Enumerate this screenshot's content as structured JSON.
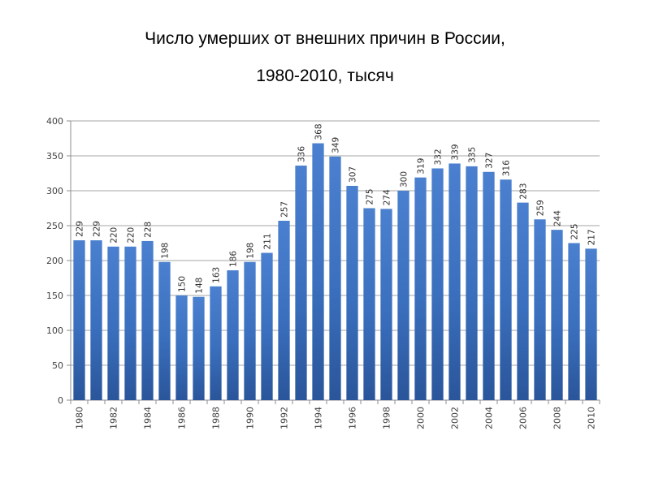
{
  "title_line1": "Число умерших от внешних причин в России,",
  "title_line2": "1980-2010, тысяч",
  "chart_data": {
    "type": "bar",
    "title": "Число умерших от внешних причин в России, 1980-2010, тысяч",
    "categories": [
      "1980",
      "1981",
      "1982",
      "1983",
      "1984",
      "1985",
      "1986",
      "1987",
      "1988",
      "1989",
      "1990",
      "1991",
      "1992",
      "1993",
      "1994",
      "1995",
      "1996",
      "1997",
      "1998",
      "1999",
      "2000",
      "2001",
      "2002",
      "2003",
      "2004",
      "2005",
      "2006",
      "2007",
      "2008",
      "2009",
      "2010"
    ],
    "x_tick_labels": [
      "1980",
      "",
      "1982",
      "",
      "1984",
      "",
      "1986",
      "",
      "1988",
      "",
      "1990",
      "",
      "1992",
      "",
      "1994",
      "",
      "1996",
      "",
      "1998",
      "",
      "2000",
      "",
      "2002",
      "",
      "2004",
      "",
      "2006",
      "",
      "2008",
      "",
      "2010"
    ],
    "values": [
      229,
      229,
      220,
      220,
      228,
      198,
      150,
      148,
      163,
      186,
      198,
      211,
      257,
      336,
      368,
      349,
      307,
      275,
      274,
      300,
      319,
      332,
      339,
      335,
      327,
      316,
      283,
      259,
      244,
      225,
      217
    ],
    "ylim": [
      0,
      400
    ],
    "yticks": [
      0,
      50,
      100,
      150,
      200,
      250,
      300,
      350,
      400
    ],
    "grid": true,
    "legend": "none",
    "bar_color": "#3a6fbd"
  }
}
